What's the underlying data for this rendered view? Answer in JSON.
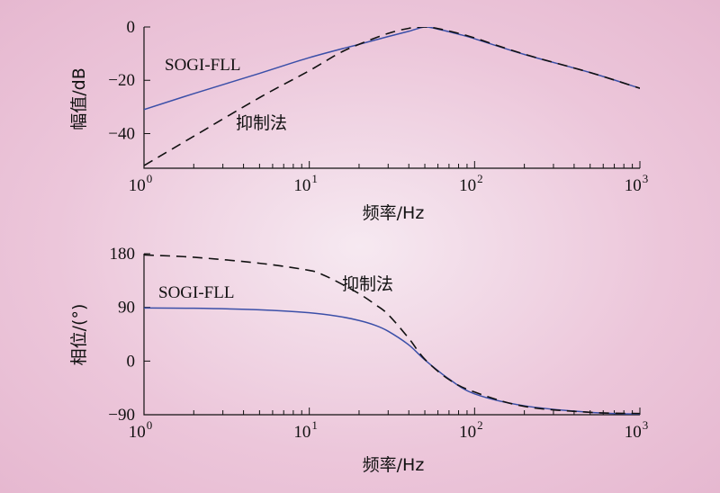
{
  "chart_data": [
    {
      "type": "line",
      "title": "",
      "xlabel": "频率/Hz",
      "ylabel": "幅值/dB",
      "xscale": "log",
      "xlim": [
        1,
        1000
      ],
      "ylim": [
        -53,
        0
      ],
      "x_tick_labels": [
        {
          "base": "10",
          "exp": "0"
        },
        {
          "base": "10",
          "exp": "1"
        },
        {
          "base": "10",
          "exp": "2"
        },
        {
          "base": "10",
          "exp": "3"
        }
      ],
      "y_ticks": [
        0,
        -20,
        -40
      ],
      "y_tick_labels": [
        "0",
        "−20",
        "−40"
      ],
      "grid": false,
      "series": [
        {
          "name": "SOGI-FLL",
          "style": "solid",
          "color": "#3b4fa8",
          "x": [
            1,
            2,
            5,
            10,
            20,
            30,
            40,
            50,
            60,
            80,
            100,
            200,
            500,
            1000
          ],
          "y": [
            -31,
            -25,
            -17.4,
            -11.5,
            -6.5,
            -3.6,
            -1.6,
            0,
            -0.8,
            -2.7,
            -4.4,
            -10.3,
            -17.1,
            -23
          ]
        },
        {
          "name": "抑制法",
          "style": "dashed",
          "color": "#111111",
          "x": [
            1,
            2,
            5,
            10,
            15,
            20,
            30,
            40,
            50,
            60,
            80,
            100,
            200,
            500,
            1000
          ],
          "y": [
            -52,
            -41,
            -26.5,
            -16.4,
            -10,
            -6.5,
            -2.4,
            -0.5,
            0,
            -0.6,
            -2.4,
            -4.1,
            -10.2,
            -17.1,
            -23
          ]
        }
      ],
      "annotations": [
        {
          "text": "SOGI-FLL",
          "near": "upper-left"
        },
        {
          "text": "抑制法",
          "near": "lower-left"
        }
      ]
    },
    {
      "type": "line",
      "title": "",
      "xlabel": "频率/Hz",
      "ylabel": "相位/(°)",
      "xscale": "log",
      "xlim": [
        1,
        1000
      ],
      "ylim": [
        -90,
        180
      ],
      "x_tick_labels": [
        {
          "base": "10",
          "exp": "0"
        },
        {
          "base": "10",
          "exp": "1"
        },
        {
          "base": "10",
          "exp": "2"
        },
        {
          "base": "10",
          "exp": "3"
        }
      ],
      "y_ticks": [
        180,
        90,
        0,
        -90
      ],
      "y_tick_labels": [
        "180",
        "90",
        "0",
        "−90"
      ],
      "grid": false,
      "series": [
        {
          "name": "SOGI-FLL",
          "style": "solid",
          "color": "#3b4fa8",
          "x": [
            1,
            2,
            5,
            10,
            15,
            20,
            25,
            30,
            40,
            50,
            70,
            100,
            200,
            500,
            1000
          ],
          "y": [
            89,
            88.5,
            86,
            81,
            75,
            68,
            60,
            50,
            27,
            2,
            -30,
            -55,
            -75,
            -86,
            -89
          ]
        },
        {
          "name": "抑制法",
          "style": "dashed",
          "color": "#111111",
          "x": [
            1,
            2,
            5,
            10,
            12,
            15,
            20,
            25,
            30,
            40,
            50,
            70,
            100,
            200,
            500,
            1000
          ],
          "y": [
            178,
            174,
            164,
            152,
            145,
            132,
            113,
            95,
            78,
            38,
            3,
            -31,
            -52,
            -76,
            -86,
            -88
          ]
        }
      ],
      "annotations": [
        {
          "text": "SOGI-FLL",
          "near": "upper-left"
        },
        {
          "text": "抑制法",
          "near": "upper-middle"
        }
      ]
    }
  ]
}
